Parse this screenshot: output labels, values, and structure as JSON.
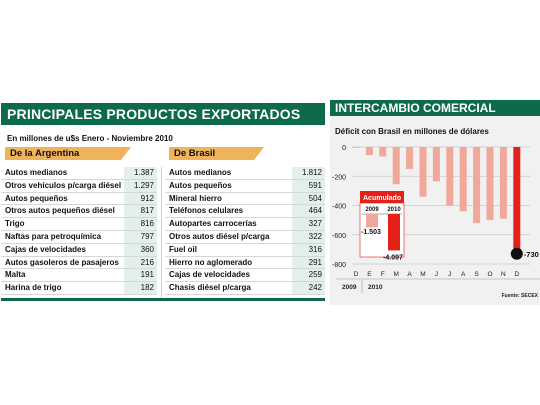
{
  "left_panel": {
    "title": "PRINCIPALES PRODUCTOS EXPORTADOS",
    "subtitle": "En millones de u$s Enero - Noviembre 2010",
    "argentina": {
      "label": "De la Argentina",
      "rows": [
        {
          "name": "Autos medianos",
          "value": "1.387"
        },
        {
          "name": "Otros vehículos p/carga diésel",
          "value": "1.297"
        },
        {
          "name": "Autos pequeños",
          "value": "912"
        },
        {
          "name": "Otros autos pequeños diésel",
          "value": "817"
        },
        {
          "name": "Trigo",
          "value": "816"
        },
        {
          "name": "Naftas para petroquímica",
          "value": "797"
        },
        {
          "name": "Cajas de velocidades",
          "value": "360"
        },
        {
          "name": "Autos gasoleros de pasajeros",
          "value": "216"
        },
        {
          "name": "Malta",
          "value": "191"
        },
        {
          "name": "Harina de trigo",
          "value": "182"
        }
      ]
    },
    "brasil": {
      "label": "De Brasil",
      "rows": [
        {
          "name": "Autos medianos",
          "value": "1.812"
        },
        {
          "name": "Autos pequeños",
          "value": "591"
        },
        {
          "name": "Mineral hierro",
          "value": "504"
        },
        {
          "name": "Teléfonos celulares",
          "value": "464"
        },
        {
          "name": "Autopartes carrocerías",
          "value": "327"
        },
        {
          "name": "Otros autos diésel p/carga",
          "value": "322"
        },
        {
          "name": "Fuel oil",
          "value": "316"
        },
        {
          "name": "Hierro no aglomerado",
          "value": "291"
        },
        {
          "name": "Cajas de velocidades",
          "value": "259"
        },
        {
          "name": "Chasis diésel p/carga",
          "value": "242"
        }
      ]
    }
  },
  "right_panel": {
    "title": "INTERCAMBIO COMERCIAL",
    "subtitle": "Déficit con Brasil en millones de dólares",
    "source": "Fuente: SECEX",
    "year_labels": [
      "2009",
      "2010"
    ]
  },
  "chart_data": {
    "type": "bar",
    "title": "Déficit con Brasil en millones de dólares",
    "categories": [
      "D",
      "E",
      "F",
      "M",
      "A",
      "M",
      "J",
      "J",
      "A",
      "S",
      "O",
      "N",
      "D"
    ],
    "values": [
      -5,
      -55,
      -65,
      -255,
      -150,
      -340,
      -235,
      -400,
      -440,
      -520,
      -500,
      -490,
      -730
    ],
    "ylim": [
      -800,
      0
    ],
    "yticks": [
      0,
      -200,
      -400,
      -600,
      -800
    ],
    "bar_color": "#f0a89a",
    "highlight_color": "#e32119",
    "annotations": [
      {
        "label": "-730"
      }
    ],
    "inset": {
      "title": "Acumulado",
      "categories": [
        "2009",
        "2010"
      ],
      "values": [
        -1503,
        -4097
      ],
      "value_labels": [
        "-1.503",
        "-4.097"
      ]
    }
  }
}
